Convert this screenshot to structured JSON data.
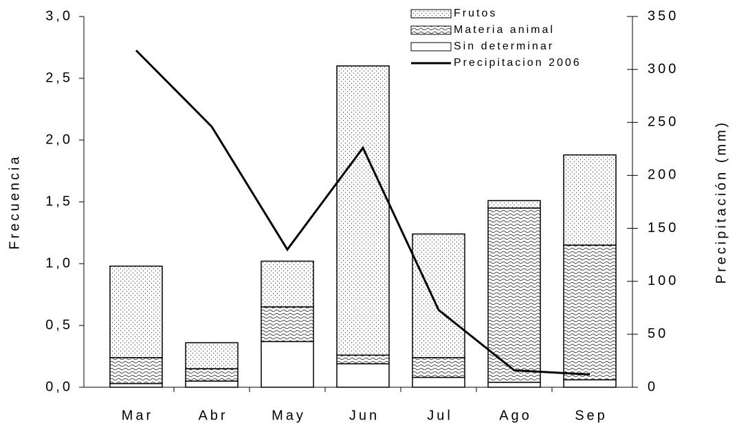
{
  "chart_data": {
    "type": "bar-line",
    "y_label": "Frecuencia",
    "y2_label": "Precipitación (mm)",
    "categories": [
      "Mar",
      "Abr",
      "May",
      "Jun",
      "Jul",
      "Ago",
      "Sep"
    ],
    "series": [
      {
        "name": "Sin determinar",
        "color": "#000000",
        "pattern": "none",
        "values": [
          0.03,
          0.05,
          0.37,
          0.19,
          0.08,
          0.04,
          0.06
        ]
      },
      {
        "name": "Materia animal",
        "color": "#000000",
        "pattern": "waves",
        "values": [
          0.21,
          0.1,
          0.28,
          0.07,
          0.16,
          1.41,
          1.09
        ]
      },
      {
        "name": "Frutos",
        "color": "#000000",
        "pattern": "dots",
        "values": [
          0.74,
          0.21,
          0.37,
          2.34,
          1.0,
          0.06,
          0.73
        ]
      },
      {
        "name": "Precipitacion 2006",
        "color": "#000000",
        "type": "line",
        "axis": "y2",
        "values": [
          318,
          246,
          130,
          226,
          73,
          16,
          12
        ]
      }
    ],
    "legend_order": [
      2,
      1,
      0,
      3
    ],
    "ylim": [
      0,
      3
    ],
    "yticks": [
      {
        "value": 0,
        "label": "0,0"
      },
      {
        "value": 0.5,
        "label": "0,5"
      },
      {
        "value": 1,
        "label": "1,0"
      },
      {
        "value": 1.5,
        "label": "1,5"
      },
      {
        "value": 2,
        "label": "2,0"
      },
      {
        "value": 2.5,
        "label": "2,5"
      },
      {
        "value": 3,
        "label": "3,0"
      }
    ],
    "y2lim": [
      0,
      350
    ],
    "y2ticks": [
      0,
      50,
      100,
      150,
      200,
      250,
      300,
      350
    ],
    "grid": false,
    "legend": "top-right"
  }
}
